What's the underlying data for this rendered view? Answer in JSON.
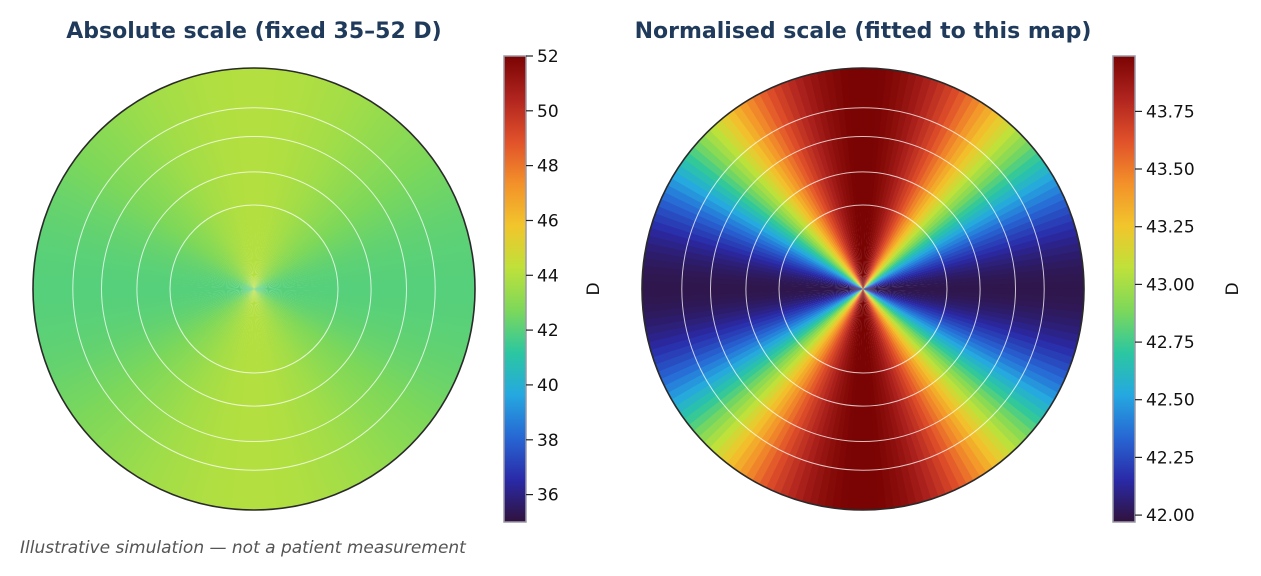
{
  "footnote": "Illustrative simulation — not a patient measurement",
  "chart_data": [
    {
      "type": "heatmap",
      "subtype": "polar-corneal-map",
      "title": "Absolute scale (fixed 35–52 D)",
      "colorbar": {
        "label": "D",
        "range": [
          35,
          52
        ],
        "ticks": [
          36,
          38,
          40,
          42,
          44,
          46,
          48,
          50,
          52
        ],
        "tick_labels": [
          "36",
          "38",
          "40",
          "42",
          "44",
          "46",
          "48",
          "50",
          "52"
        ]
      },
      "value_range_depicted": [
        42.0,
        44.0
      ],
      "steep_axis": "vertical",
      "rings": 5,
      "grid": true
    },
    {
      "type": "heatmap",
      "subtype": "polar-corneal-map",
      "title": "Normalised scale (fitted to this map)",
      "colorbar": {
        "label": "D",
        "range": [
          41.97,
          43.99
        ],
        "ticks": [
          42.0,
          42.25,
          42.5,
          42.75,
          43.0,
          43.25,
          43.5,
          43.75
        ],
        "tick_labels": [
          "42.00",
          "42.25",
          "42.50",
          "42.75",
          "43.00",
          "43.25",
          "43.50",
          "43.75"
        ]
      },
      "value_range_depicted": [
        42.0,
        44.0
      ],
      "steep_axis": "vertical",
      "rings": 5,
      "grid": true
    }
  ],
  "colormap": [
    "#30123b",
    "#2a2aa8",
    "#2767d4",
    "#25a8e0",
    "#2cc7a0",
    "#7dd85a",
    "#bfe13a",
    "#f2c52c",
    "#f3902a",
    "#e0502a",
    "#b0241f",
    "#7a0403"
  ]
}
